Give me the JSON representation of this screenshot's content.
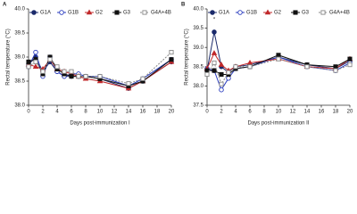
{
  "chart_data": [
    {
      "type": "line",
      "panel_label": "A",
      "y_label": "Rectal temperature (°C)",
      "x_label": "Days post-immunization I",
      "x": [
        0,
        1,
        2,
        3,
        4,
        5,
        6,
        7,
        8,
        10,
        14,
        16,
        20
      ],
      "xlim": [
        0,
        20
      ],
      "xticks": [
        0,
        2,
        4,
        6,
        8,
        10,
        12,
        14,
        16,
        18,
        20
      ],
      "ylim": [
        38,
        40
      ],
      "yticks": [
        {
          "value": 38,
          "label": "38.0"
        },
        38.5,
        {
          "value": 39,
          "label": "39.0"
        },
        39.5,
        {
          "value": 40,
          "label": "40.0"
        }
      ],
      "series": [
        {
          "name": "G1A",
          "color": "#1b2a6b",
          "marker": "circle",
          "filled": true,
          "dashed": false,
          "values": [
            38.85,
            39.0,
            38.7,
            38.9,
            38.7,
            38.6,
            38.6,
            38.6,
            38.6,
            38.55,
            38.35,
            38.5,
            38.9
          ]
        },
        {
          "name": "G1B",
          "color": "#2b3dbf",
          "marker": "circle",
          "filled": false,
          "dashed": false,
          "values": [
            38.8,
            39.1,
            38.6,
            39.0,
            38.7,
            38.6,
            38.65,
            38.65,
            38.6,
            38.6,
            38.4,
            38.55,
            38.95
          ]
        },
        {
          "name": "G2",
          "color": "#c0282a",
          "marker": "triangle",
          "filled": true,
          "dashed": false,
          "values": [
            38.85,
            38.8,
            38.75,
            38.95,
            38.75,
            38.7,
            38.65,
            38.6,
            38.55,
            38.5,
            38.35,
            38.5,
            38.9
          ]
        },
        {
          "name": "G3",
          "color": "#111111",
          "marker": "square",
          "filled": true,
          "dashed": false,
          "values": [
            38.9,
            38.95,
            38.65,
            39.0,
            38.75,
            38.65,
            38.6,
            38.6,
            38.6,
            38.55,
            38.4,
            38.5,
            38.95
          ]
        },
        {
          "name": "G4A+4B",
          "color": "#888888",
          "marker": "square",
          "filled": false,
          "dashed": true,
          "values": [
            38.8,
            38.9,
            38.7,
            38.95,
            38.8,
            38.7,
            38.7,
            38.6,
            38.6,
            38.6,
            38.45,
            38.55,
            39.1
          ]
        }
      ]
    },
    {
      "type": "line",
      "panel_label": "B",
      "y_label": "Rectal temperature (°C)",
      "x_label": "Days post-immunization II",
      "x": [
        0,
        1,
        2,
        3,
        4,
        6,
        10,
        14,
        18,
        20
      ],
      "xlim": [
        0,
        20
      ],
      "xticks": [
        0,
        2,
        4,
        6,
        8,
        10,
        12,
        14,
        16,
        18,
        20
      ],
      "ylim": [
        37.5,
        40
      ],
      "yticks": [
        37.5,
        {
          "value": 38,
          "label": "38.0"
        },
        38.5,
        {
          "value": 39,
          "label": "39.0"
        },
        39.5,
        {
          "value": 40,
          "label": "40.0"
        }
      ],
      "annotations": [
        {
          "text": "*",
          "x": 1
        }
      ],
      "series": [
        {
          "name": "G1A",
          "color": "#1b2a6b",
          "marker": "circle",
          "filled": true,
          "dashed": false,
          "values": [
            38.4,
            39.4,
            38.5,
            38.35,
            38.5,
            38.55,
            38.75,
            38.55,
            38.45,
            38.65
          ]
        },
        {
          "name": "G1B",
          "color": "#2b3dbf",
          "marker": "circle",
          "filled": false,
          "dashed": false,
          "values": [
            38.45,
            38.4,
            37.9,
            38.2,
            38.45,
            38.5,
            38.75,
            38.5,
            38.4,
            38.6
          ]
        },
        {
          "name": "G2",
          "color": "#c0282a",
          "marker": "triangle",
          "filled": true,
          "dashed": false,
          "values": [
            38.45,
            38.85,
            38.55,
            38.4,
            38.5,
            38.6,
            38.7,
            38.5,
            38.45,
            38.7
          ]
        },
        {
          "name": "G3",
          "color": "#111111",
          "marker": "square",
          "filled": true,
          "dashed": false,
          "values": [
            38.4,
            38.4,
            38.3,
            38.3,
            38.45,
            38.5,
            38.8,
            38.55,
            38.5,
            38.7
          ]
        },
        {
          "name": "G4A+4B",
          "color": "#888888",
          "marker": "square",
          "filled": false,
          "dashed": true,
          "values": [
            38.3,
            38.6,
            38.05,
            38.35,
            38.5,
            38.5,
            38.7,
            38.5,
            38.4,
            38.55
          ]
        }
      ]
    }
  ]
}
